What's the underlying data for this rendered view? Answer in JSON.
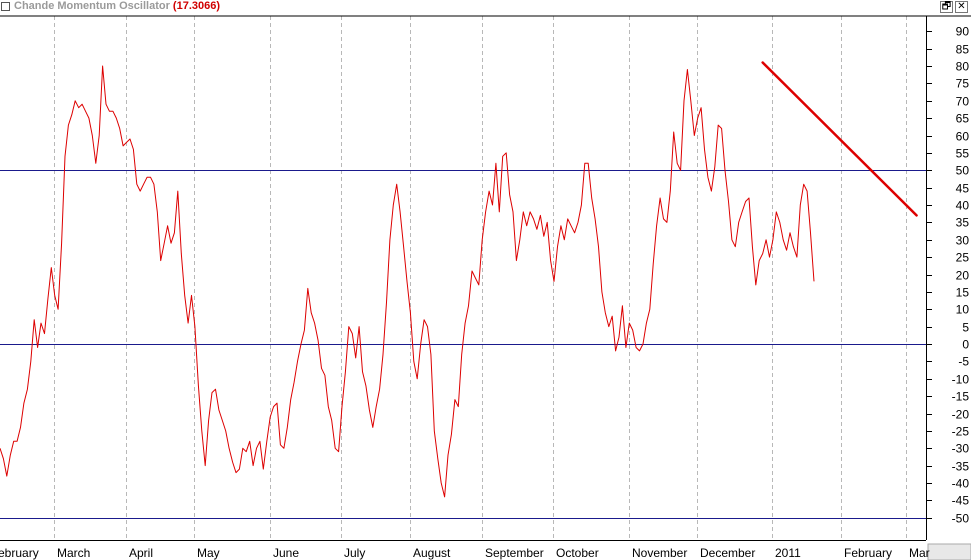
{
  "title": {
    "name": "Chande Momentum Oscillator",
    "value": "(17.3066)",
    "restore_icon": "restore-icon",
    "close_icon": "close-icon",
    "restore_glyph": "🗗",
    "close_glyph": "✕"
  },
  "colors": {
    "series": "#dd0000",
    "trendline": "#dd0000",
    "reference_lines": "#1a1a8c",
    "grid": "#b8b8b8",
    "title_value": "#d00000"
  },
  "chart_data": {
    "type": "line",
    "ylim": [
      -55,
      95
    ],
    "y_ticks": [
      90,
      85,
      80,
      75,
      70,
      65,
      60,
      55,
      50,
      45,
      40,
      35,
      30,
      25,
      20,
      15,
      10,
      5,
      0,
      -5,
      -10,
      -15,
      -20,
      -25,
      -30,
      -35,
      -40,
      -45,
      -50
    ],
    "x_labels": [
      {
        "label": "ebruary",
        "index": 0
      },
      {
        "label": "March",
        "index": 17
      },
      {
        "label": "April",
        "index": 38
      },
      {
        "label": "May",
        "index": 58
      },
      {
        "label": "June",
        "index": 80
      },
      {
        "label": "July",
        "index": 101
      },
      {
        "label": "August",
        "index": 121
      },
      {
        "label": "September",
        "index": 142
      },
      {
        "label": "October",
        "index": 163
      },
      {
        "label": "November",
        "index": 185
      },
      {
        "label": "December",
        "index": 205
      },
      {
        "label": "2011",
        "index": 227
      },
      {
        "label": "February",
        "index": 247
      },
      {
        "label": "Mar",
        "index": 266
      }
    ],
    "reference_lines": [
      50,
      0,
      -50
    ],
    "grid": true,
    "trendline": {
      "from": {
        "index": 223,
        "value": 81
      },
      "to": {
        "index": 268,
        "value": 37
      }
    },
    "last_value": 17.3066,
    "series": [
      {
        "values": [
          -30,
          -33,
          -38,
          -32,
          -28,
          -28,
          -24,
          -17,
          -13,
          -5,
          7,
          -1,
          6,
          3,
          13,
          22,
          14,
          10,
          29,
          54,
          63,
          66,
          70,
          68,
          69,
          67,
          65,
          60,
          52,
          60,
          80,
          69,
          67,
          67,
          65,
          62,
          57,
          58,
          59,
          56,
          46,
          44,
          46,
          48,
          48,
          46,
          38,
          24,
          29,
          34,
          29,
          32,
          44,
          26,
          14,
          6,
          14,
          5,
          -12,
          -25,
          -35,
          -22,
          -14,
          -13,
          -19,
          -22,
          -25,
          -30,
          -34,
          -37,
          -36,
          -30,
          -31,
          -28,
          -35,
          -30,
          -28,
          -36,
          -28,
          -21,
          -18,
          -17,
          -29,
          -30,
          -24,
          -16,
          -11,
          -5,
          0,
          4,
          16,
          9,
          6,
          1,
          -7,
          -9,
          -18,
          -22,
          -30,
          -31,
          -18,
          -8,
          5,
          3,
          -4,
          5,
          -8,
          -12,
          -19,
          -24,
          -18,
          -13,
          -3,
          12,
          30,
          40,
          46,
          38,
          28,
          18,
          9,
          -5,
          -10,
          0,
          7,
          5,
          -3,
          -25,
          -33,
          -40,
          -44,
          -32,
          -26,
          -16,
          -18,
          -3,
          6,
          11,
          21,
          19,
          17,
          30,
          38,
          44,
          40,
          52,
          38,
          54,
          55,
          43,
          38,
          24,
          30,
          38,
          34,
          38,
          36,
          33,
          37,
          31,
          35,
          24,
          18,
          28,
          34,
          30,
          36,
          34,
          32,
          35,
          40,
          52,
          52,
          42,
          36,
          28,
          15,
          9,
          5,
          8,
          -2,
          2,
          11,
          -1,
          6,
          4,
          -1,
          -2,
          0,
          6,
          10,
          23,
          34,
          42,
          36,
          35,
          44,
          61,
          52,
          50,
          70,
          79,
          70,
          60,
          65,
          68,
          56,
          48,
          44,
          51,
          63,
          62,
          50,
          41,
          30,
          28,
          35,
          38,
          41,
          42,
          28,
          17,
          24,
          26,
          30,
          25,
          30,
          38,
          35,
          30,
          27,
          32,
          28,
          25,
          40,
          46,
          44,
          32,
          18
        ]
      }
    ]
  }
}
